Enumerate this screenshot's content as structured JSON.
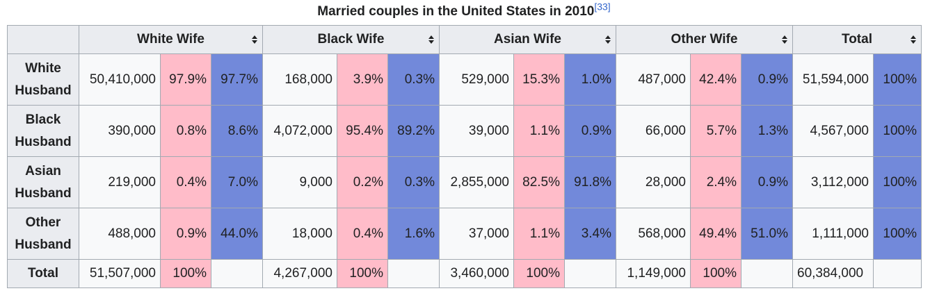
{
  "caption": {
    "text": "Married couples in the United States in 2010",
    "ref": "[33]"
  },
  "colors": {
    "pink": "#ffbcc9",
    "blue": "#7289da",
    "header_bg": "#eaecf0",
    "cell_bg": "#f8f9fa",
    "border": "#a2a9b1"
  },
  "headers": [
    "White Wife",
    "Black Wife",
    "Asian Wife",
    "Other Wife",
    "Total"
  ],
  "rows": [
    {
      "label": [
        "White",
        "Husband"
      ],
      "groups": [
        [
          "50,410,000",
          "97.9%",
          "97.7%"
        ],
        [
          "168,000",
          "3.9%",
          "0.3%"
        ],
        [
          "529,000",
          "15.3%",
          "1.0%"
        ],
        [
          "487,000",
          "42.4%",
          "0.9%"
        ]
      ],
      "total": [
        "51,594,000",
        "100%"
      ]
    },
    {
      "label": [
        "Black",
        "Husband"
      ],
      "groups": [
        [
          "390,000",
          "0.8%",
          "8.6%"
        ],
        [
          "4,072,000",
          "95.4%",
          "89.2%"
        ],
        [
          "39,000",
          "1.1%",
          "0.9%"
        ],
        [
          "66,000",
          "5.7%",
          "1.3%"
        ]
      ],
      "total": [
        "4,567,000",
        "100%"
      ]
    },
    {
      "label": [
        "Asian",
        "Husband"
      ],
      "groups": [
        [
          "219,000",
          "0.4%",
          "7.0%"
        ],
        [
          "9,000",
          "0.2%",
          "0.3%"
        ],
        [
          "2,855,000",
          "82.5%",
          "91.8%"
        ],
        [
          "28,000",
          "2.4%",
          "0.9%"
        ]
      ],
      "total": [
        "3,112,000",
        "100%"
      ]
    },
    {
      "label": [
        "Other",
        "Husband"
      ],
      "groups": [
        [
          "488,000",
          "0.9%",
          "44.0%"
        ],
        [
          "18,000",
          "0.4%",
          "1.6%"
        ],
        [
          "37,000",
          "1.1%",
          "3.4%"
        ],
        [
          "568,000",
          "49.4%",
          "51.0%"
        ]
      ],
      "total": [
        "1,111,000",
        "100%"
      ]
    }
  ],
  "total_row": {
    "label": "Total",
    "groups": [
      [
        "51,507,000",
        "100%",
        ""
      ],
      [
        "4,267,000",
        "100%",
        ""
      ],
      [
        "3,460,000",
        "100%",
        ""
      ],
      [
        "1,149,000",
        "100%",
        ""
      ]
    ],
    "total": [
      "60,384,000",
      ""
    ]
  }
}
